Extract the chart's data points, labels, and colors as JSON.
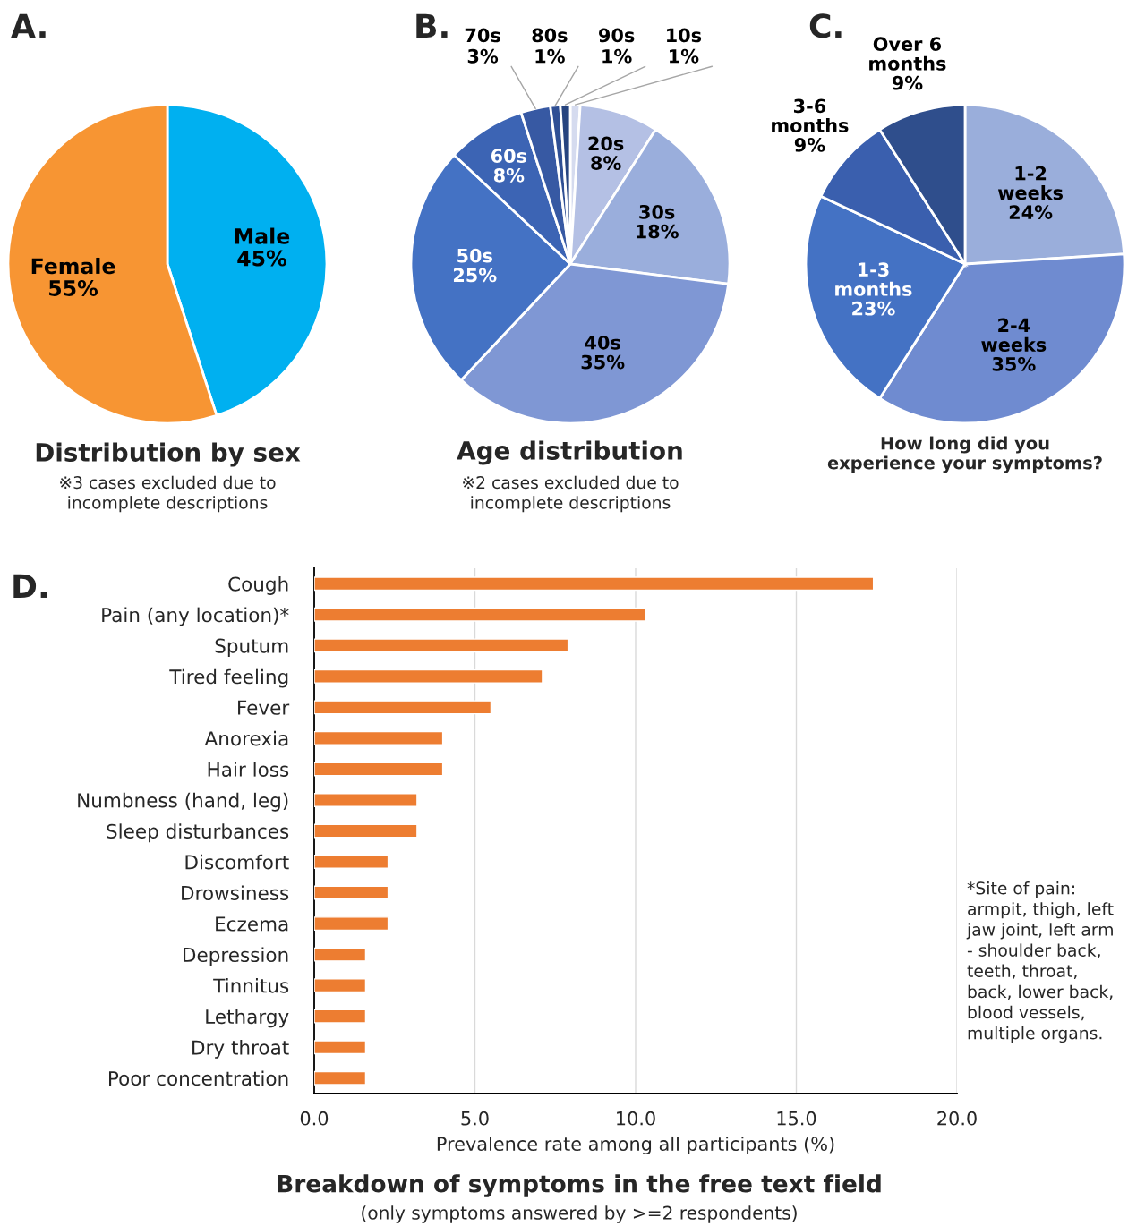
{
  "chart_data": [
    {
      "type": "pie",
      "title": "Distribution by sex",
      "annotations": [
        "A.",
        "※3 cases excluded due to\nincomplete descriptions"
      ],
      "categories": [
        "Male",
        "Female"
      ],
      "values": [
        45,
        55
      ],
      "value_labels": [
        "45%",
        "55%"
      ],
      "colors": [
        "#00b0f0",
        "#f79533"
      ]
    },
    {
      "type": "pie",
      "title": "Age distribution",
      "annotations": [
        "B.",
        "※2 cases excluded due to\nincomplete descriptions"
      ],
      "categories": [
        "10s",
        "20s",
        "30s",
        "40s",
        "50s",
        "60s",
        "70s",
        "80s",
        "90s"
      ],
      "values": [
        1,
        8,
        18,
        35,
        25,
        8,
        3,
        1,
        1
      ],
      "value_labels": [
        "1%",
        "8%",
        "18%",
        "35%",
        "25%",
        "8%",
        "3%",
        "1%",
        "1%"
      ],
      "colors": [
        "#d5dbef",
        "#b4c0e4",
        "#9aaedc",
        "#7f97d4",
        "#4472c4",
        "#3c64b4",
        "#3759a3",
        "#2f4f94",
        "#27447f"
      ]
    },
    {
      "type": "pie",
      "title": "How long did you\nexperience your symptoms?",
      "annotations": [
        "C."
      ],
      "categories": [
        "1-2\nweeks",
        "2-4\nweeks",
        "1-3\nmonths",
        "3-6\nmonths",
        "Over 6\nmonths"
      ],
      "values": [
        24,
        35,
        23,
        9,
        9
      ],
      "value_labels": [
        "24%",
        "35%",
        "23%",
        "9%",
        "9%"
      ],
      "colors": [
        "#9aaedb",
        "#6f8bd0",
        "#4472c4",
        "#3a5fae",
        "#2f4e8c"
      ]
    },
    {
      "type": "bar",
      "orientation": "horizontal",
      "title": "Breakdown of symptoms in the free text field",
      "subtitle": "(only symptoms answered by >=2 respondents)",
      "xlabel": "Prevalence rate among all participants (%)",
      "annotations": [
        "D.",
        "*Site of pain:\narmpit, thigh, left\njaw joint, left arm\n- shoulder back,\nteeth, throat,\nback, lower back,\nblood vessels,\nmultiple organs."
      ],
      "categories": [
        "Cough",
        "Pain (any location)*",
        "Sputum",
        "Tired feeling",
        "Fever",
        "Anorexia",
        "Hair loss",
        "Numbness (hand, leg)",
        "Sleep disturbances",
        "Discomfort",
        "Drowsiness",
        "Eczema",
        "Depression",
        "Tinnitus",
        "Lethargy",
        "Dry throat",
        "Poor concentration"
      ],
      "values": [
        17.4,
        10.3,
        7.9,
        7.1,
        5.5,
        4.0,
        4.0,
        3.2,
        3.2,
        2.3,
        2.3,
        2.3,
        1.6,
        1.6,
        1.6,
        1.6,
        1.6
      ],
      "color": "#ed7d31",
      "xlim": [
        0,
        20
      ],
      "xticks": [
        {
          "value": 0,
          "label": "0.0"
        },
        {
          "value": 5,
          "label": "5.0"
        },
        {
          "value": 10,
          "label": "10.0"
        },
        {
          "value": 15,
          "label": "15.0"
        },
        {
          "value": 20,
          "label": "20.0"
        }
      ],
      "grid": "x"
    }
  ]
}
